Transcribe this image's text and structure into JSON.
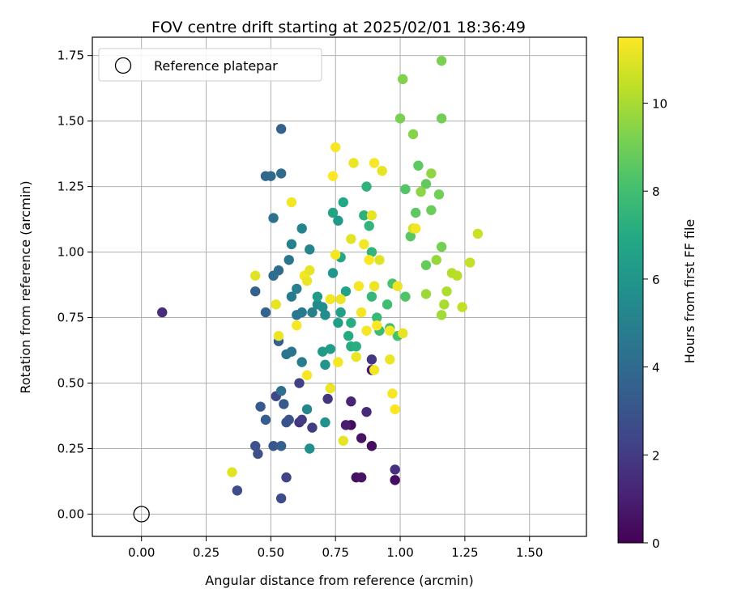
{
  "chart_data": {
    "type": "scatter",
    "title": "FOV centre drift starting at 2025/02/01 18:36:49",
    "xlabel": "Angular distance from reference (arcmin)",
    "ylabel": "Rotation from reference (arcmin)",
    "xlim": [
      -0.19,
      1.72
    ],
    "ylim": [
      -0.085,
      1.82
    ],
    "x_ticks": [
      0.0,
      0.25,
      0.5,
      0.75,
      1.0,
      1.25,
      1.5
    ],
    "x_tick_labels": [
      "0.00",
      "0.25",
      "0.50",
      "0.75",
      "1.00",
      "1.25",
      "1.50"
    ],
    "y_ticks": [
      0.0,
      0.25,
      0.5,
      0.75,
      1.0,
      1.25,
      1.5,
      1.75
    ],
    "y_tick_labels": [
      "0.00",
      "0.25",
      "0.50",
      "0.75",
      "1.00",
      "1.25",
      "1.50",
      "1.75"
    ],
    "grid": true,
    "legend": {
      "position": "top-left",
      "entries": [
        "Reference platepar"
      ]
    },
    "reference_point": {
      "x": 0.0,
      "y": 0.0
    },
    "colorbar": {
      "label": "Hours from first FF file",
      "colormap": "viridis",
      "range": [
        0,
        11.5
      ],
      "ticks": [
        0,
        2,
        4,
        6,
        8,
        10
      ],
      "tick_labels": [
        "0",
        "2",
        "4",
        "6",
        "8",
        "10"
      ]
    },
    "points": [
      [
        0.81,
        0.34,
        0.3
      ],
      [
        0.83,
        0.14,
        0.5
      ],
      [
        0.85,
        0.14,
        0.6
      ],
      [
        0.89,
        0.26,
        0.4
      ],
      [
        0.98,
        0.13,
        0.4
      ],
      [
        0.85,
        0.29,
        0.6
      ],
      [
        0.89,
        0.55,
        0.8
      ],
      [
        0.79,
        0.34,
        1.0
      ],
      [
        0.81,
        0.43,
        1.2
      ],
      [
        0.87,
        0.39,
        1.4
      ],
      [
        0.98,
        0.17,
        1.6
      ],
      [
        0.89,
        0.59,
        1.8
      ],
      [
        0.08,
        0.77,
        1.5
      ],
      [
        0.72,
        0.44,
        1.8
      ],
      [
        0.61,
        0.35,
        1.7
      ],
      [
        0.62,
        0.36,
        2.0
      ],
      [
        0.66,
        0.33,
        2.1
      ],
      [
        0.61,
        0.5,
        2.2
      ],
      [
        0.56,
        0.14,
        2.3
      ],
      [
        0.52,
        0.45,
        2.4
      ],
      [
        0.54,
        0.06,
        2.6
      ],
      [
        0.37,
        0.09,
        2.7
      ],
      [
        0.45,
        0.23,
        2.8
      ],
      [
        0.44,
        0.26,
        2.9
      ],
      [
        0.56,
        0.35,
        3.0
      ],
      [
        0.57,
        0.36,
        3.0
      ],
      [
        0.51,
        0.26,
        3.1
      ],
      [
        0.55,
        0.42,
        3.2
      ],
      [
        0.46,
        0.41,
        3.3
      ],
      [
        0.48,
        0.36,
        3.4
      ],
      [
        0.54,
        0.26,
        3.5
      ],
      [
        0.53,
        0.66,
        3.5
      ],
      [
        0.44,
        0.85,
        3.6
      ],
      [
        0.48,
        0.77,
        3.7
      ],
      [
        0.54,
        1.47,
        3.6
      ],
      [
        0.48,
        1.29,
        3.8
      ],
      [
        0.5,
        1.29,
        3.9
      ],
      [
        0.54,
        1.3,
        4.0
      ],
      [
        0.53,
        0.93,
        4.0
      ],
      [
        0.51,
        0.91,
        4.1
      ],
      [
        0.54,
        0.47,
        4.2
      ],
      [
        0.51,
        1.13,
        4.3
      ],
      [
        0.57,
        0.97,
        4.4
      ],
      [
        0.56,
        0.61,
        4.4
      ],
      [
        0.58,
        0.62,
        4.5
      ],
      [
        0.6,
        0.76,
        4.6
      ],
      [
        0.62,
        0.77,
        4.7
      ],
      [
        0.58,
        0.83,
        4.7
      ],
      [
        0.62,
        0.58,
        4.8
      ],
      [
        0.6,
        0.86,
        4.9
      ],
      [
        0.66,
        0.77,
        5.0
      ],
      [
        0.58,
        1.03,
        5.0
      ],
      [
        0.62,
        1.09,
        5.1
      ],
      [
        0.65,
        1.01,
        5.2
      ],
      [
        0.64,
        0.4,
        5.3
      ],
      [
        0.68,
        0.8,
        5.4
      ],
      [
        0.7,
        0.79,
        5.5
      ],
      [
        0.71,
        0.76,
        5.6
      ],
      [
        0.65,
        0.25,
        5.7
      ],
      [
        0.71,
        0.35,
        5.8
      ],
      [
        0.71,
        0.57,
        5.9
      ],
      [
        0.74,
        0.92,
        6.0
      ],
      [
        0.76,
        1.12,
        6.1
      ],
      [
        0.7,
        0.62,
        6.2
      ],
      [
        0.68,
        0.83,
        6.2
      ],
      [
        0.73,
        0.63,
        6.3
      ],
      [
        0.76,
        0.73,
        6.4
      ],
      [
        0.77,
        0.77,
        6.5
      ],
      [
        0.79,
        0.85,
        6.6
      ],
      [
        0.74,
        1.15,
        6.7
      ],
      [
        0.77,
        0.98,
        6.8
      ],
      [
        0.78,
        1.19,
        6.9
      ],
      [
        0.8,
        0.68,
        7.0
      ],
      [
        0.81,
        0.64,
        7.0
      ],
      [
        0.81,
        0.73,
        7.1
      ],
      [
        0.83,
        0.64,
        7.2
      ],
      [
        0.86,
        1.14,
        7.3
      ],
      [
        0.87,
        1.25,
        7.4
      ],
      [
        0.88,
        1.1,
        7.5
      ],
      [
        0.89,
        1.0,
        7.5
      ],
      [
        0.89,
        0.83,
        7.6
      ],
      [
        0.91,
        0.75,
        7.7
      ],
      [
        0.92,
        0.7,
        7.8
      ],
      [
        0.95,
        0.8,
        7.9
      ],
      [
        0.96,
        0.71,
        8.0
      ],
      [
        0.99,
        0.68,
        8.1
      ],
      [
        0.97,
        0.88,
        8.2
      ],
      [
        1.02,
        0.83,
        8.3
      ],
      [
        1.02,
        1.24,
        8.4
      ],
      [
        1.04,
        1.06,
        8.5
      ],
      [
        1.07,
        1.33,
        8.6
      ],
      [
        1.06,
        1.15,
        8.6
      ],
      [
        1.1,
        1.26,
        8.7
      ],
      [
        1.1,
        0.95,
        8.8
      ],
      [
        1.12,
        1.16,
        8.9
      ],
      [
        1.15,
        1.22,
        9.0
      ],
      [
        1.16,
        1.02,
        9.1
      ],
      [
        1.16,
        1.51,
        9.0
      ],
      [
        1.16,
        1.73,
        9.2
      ],
      [
        1.01,
        1.66,
        9.3
      ],
      [
        1.0,
        1.51,
        9.2
      ],
      [
        1.05,
        1.45,
        9.4
      ],
      [
        1.08,
        1.23,
        9.5
      ],
      [
        1.12,
        1.3,
        9.6
      ],
      [
        1.14,
        0.97,
        9.7
      ],
      [
        1.1,
        0.84,
        9.8
      ],
      [
        1.16,
        0.76,
        9.9
      ],
      [
        1.17,
        0.8,
        10.0
      ],
      [
        1.18,
        0.85,
        10.1
      ],
      [
        1.2,
        0.92,
        10.2
      ],
      [
        1.22,
        0.91,
        10.3
      ],
      [
        1.24,
        0.79,
        10.4
      ],
      [
        1.27,
        0.96,
        10.5
      ],
      [
        1.3,
        1.07,
        10.6
      ],
      [
        1.05,
        1.09,
        10.7
      ],
      [
        0.35,
        0.16,
        11.0
      ],
      [
        0.52,
        0.8,
        11.1
      ],
      [
        0.44,
        0.91,
        11.0
      ],
      [
        0.53,
        0.68,
        11.2
      ],
      [
        0.58,
        1.19,
        11.3
      ],
      [
        0.6,
        0.72,
        11.4
      ],
      [
        0.63,
        0.91,
        11.3
      ],
      [
        0.64,
        0.89,
        11.2
      ],
      [
        0.65,
        0.93,
        11.1
      ],
      [
        0.64,
        0.53,
        11.4
      ],
      [
        0.73,
        0.82,
        11.3
      ],
      [
        0.73,
        0.48,
        11.2
      ],
      [
        0.74,
        1.29,
        11.5
      ],
      [
        0.75,
        1.4,
        11.4
      ],
      [
        0.76,
        0.58,
        11.3
      ],
      [
        0.77,
        0.82,
        11.2
      ],
      [
        0.78,
        0.28,
        11.1
      ],
      [
        0.81,
        1.05,
        11.0
      ],
      [
        0.82,
        1.34,
        11.2
      ],
      [
        0.84,
        0.87,
        11.4
      ],
      [
        0.85,
        0.77,
        11.3
      ],
      [
        0.86,
        1.03,
        11.3
      ],
      [
        0.87,
        0.7,
        11.4
      ],
      [
        0.88,
        0.97,
        11.5
      ],
      [
        0.89,
        1.14,
        11.1
      ],
      [
        0.9,
        0.87,
        11.2
      ],
      [
        0.9,
        0.55,
        11.3
      ],
      [
        0.9,
        1.34,
        11.4
      ],
      [
        0.91,
        0.72,
        11.5
      ],
      [
        0.92,
        0.97,
        11.0
      ],
      [
        0.93,
        1.31,
        11.1
      ],
      [
        0.96,
        0.59,
        11.2
      ],
      [
        0.96,
        0.7,
        11.3
      ],
      [
        0.97,
        0.46,
        11.4
      ],
      [
        0.98,
        0.4,
        11.5
      ],
      [
        0.99,
        0.87,
        11.2
      ],
      [
        1.01,
        0.69,
        11.1
      ],
      [
        1.06,
        1.09,
        11.3
      ],
      [
        0.75,
        0.99,
        11.3
      ],
      [
        0.83,
        0.6,
        11.2
      ]
    ]
  }
}
